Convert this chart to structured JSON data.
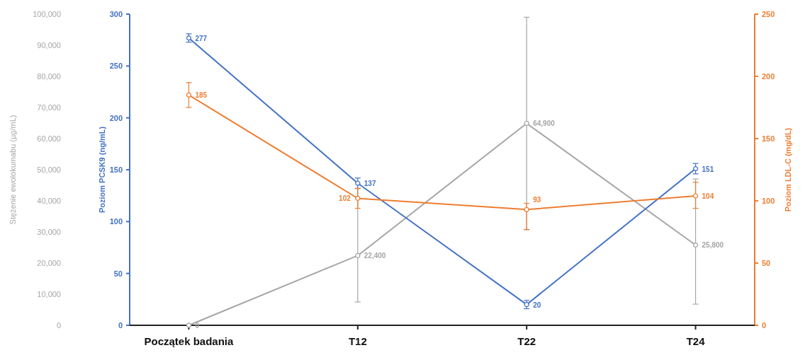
{
  "chart_data": {
    "type": "line",
    "categories": [
      "Początek badania",
      "T12",
      "T22",
      "T24"
    ],
    "ylabel": "Poziom PCSK9 (ng/mL)",
    "ylim": [
      0,
      300
    ],
    "yticks": [
      0,
      50,
      100,
      150,
      200,
      250,
      300
    ],
    "y2label": "Poziom LDL-C (mg/dL)",
    "y2lim": [
      0,
      250
    ],
    "y2ticks": [
      0,
      50,
      100,
      150,
      200,
      250
    ],
    "y3label": "Stężenie ewolokumabu (µg/mL)",
    "y3lim": [
      0,
      100000
    ],
    "y3ticks": [
      0,
      {
        "value": 10000,
        "label": "10,000"
      },
      {
        "value": 20000,
        "label": "20,000"
      },
      {
        "value": 30000,
        "label": "30,000"
      },
      {
        "value": 40000,
        "label": "40,000"
      },
      {
        "value": 50000,
        "label": "50,000"
      },
      {
        "value": 60000,
        "label": "60,000"
      },
      {
        "value": 70000,
        "label": "70,000"
      },
      {
        "value": 80000,
        "label": "80,000"
      },
      {
        "value": 90000,
        "label": "90,000"
      },
      {
        "value": 100000,
        "label": "100,000"
      }
    ],
    "marker": "circle",
    "line_style": "solid",
    "data_labels": true,
    "series": [
      {
        "axis": "y3",
        "color": "#a6a6a6",
        "values": [
          0,
          22400,
          64900,
          25800
        ],
        "value_labels": [
          "0",
          "22,400",
          "64,900",
          "25,800"
        ],
        "errors": [
          null,
          [
            7500,
            43900
          ],
          [
            30700,
            99000
          ],
          [
            6800,
            47000
          ]
        ]
      },
      {
        "axis": "y",
        "color": "#4472c4",
        "values": [
          277,
          137,
          20,
          151
        ],
        "errors": [
          4,
          5,
          4,
          5
        ]
      },
      {
        "axis": "y2",
        "color": "#ed7d31",
        "values": [
          185,
          102,
          93,
          104
        ],
        "errors": [
          10,
          8,
          [
            77,
            98
          ],
          [
            94,
            115
          ]
        ]
      }
    ]
  }
}
